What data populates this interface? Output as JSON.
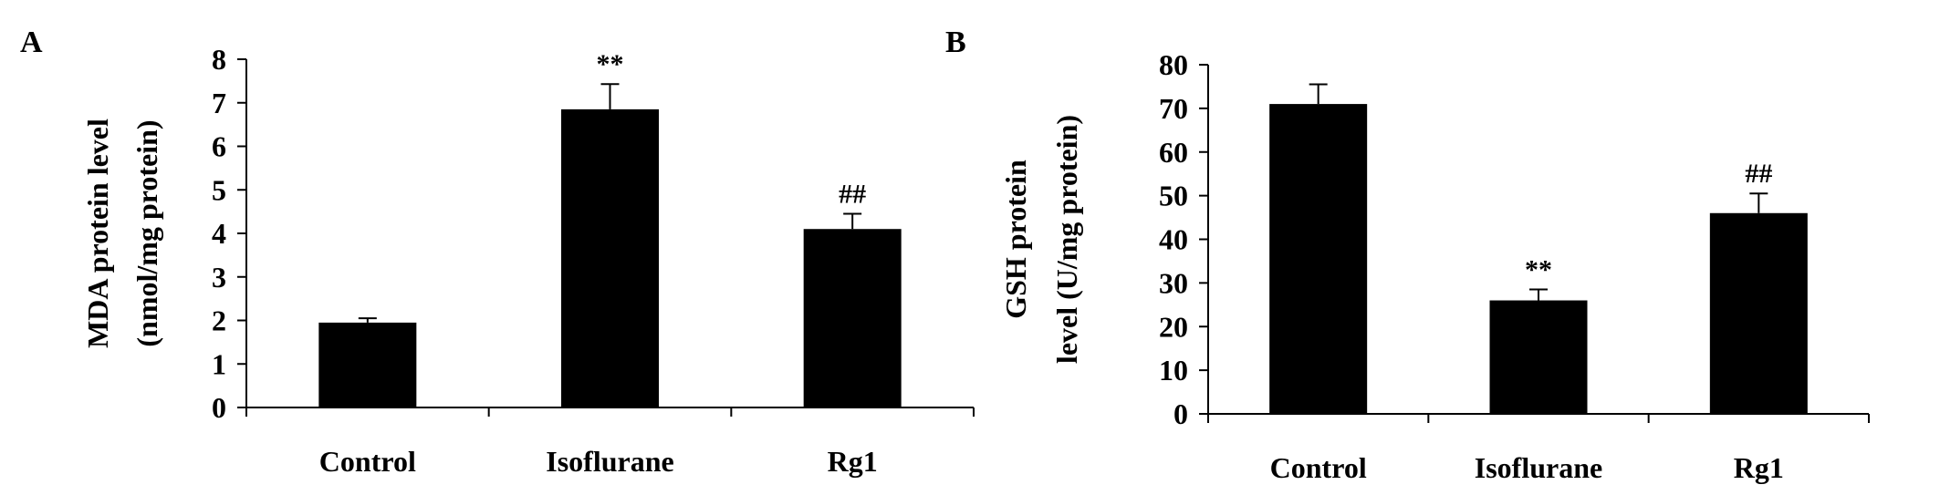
{
  "chart_data": [
    {
      "panel": "A",
      "type": "bar",
      "categories": [
        "Control",
        "Isoflurane",
        "Rg1"
      ],
      "values": [
        1.95,
        6.85,
        4.1
      ],
      "errors": [
        0.1,
        0.58,
        0.35
      ],
      "annotations": [
        "",
        "**",
        "##"
      ],
      "ylabel_lines": [
        "MDA protein level",
        "(nmol/mg protein)"
      ],
      "ylim": [
        0,
        8
      ],
      "yticks": [
        0,
        1,
        2,
        3,
        4,
        5,
        6,
        7,
        8
      ],
      "bar_color": "#000000"
    },
    {
      "panel": "B",
      "type": "bar",
      "categories": [
        "Control",
        "Isoflurane",
        "Rg1"
      ],
      "values": [
        71,
        26,
        46
      ],
      "errors": [
        4.5,
        2.5,
        4.5
      ],
      "annotations": [
        "",
        "**",
        "##"
      ],
      "ylabel_lines": [
        "GSH protein",
        "level (U/mg protein)"
      ],
      "ylim": [
        0,
        80
      ],
      "yticks": [
        0,
        10,
        20,
        30,
        40,
        50,
        60,
        70,
        80
      ],
      "bar_color": "#000000"
    }
  ]
}
